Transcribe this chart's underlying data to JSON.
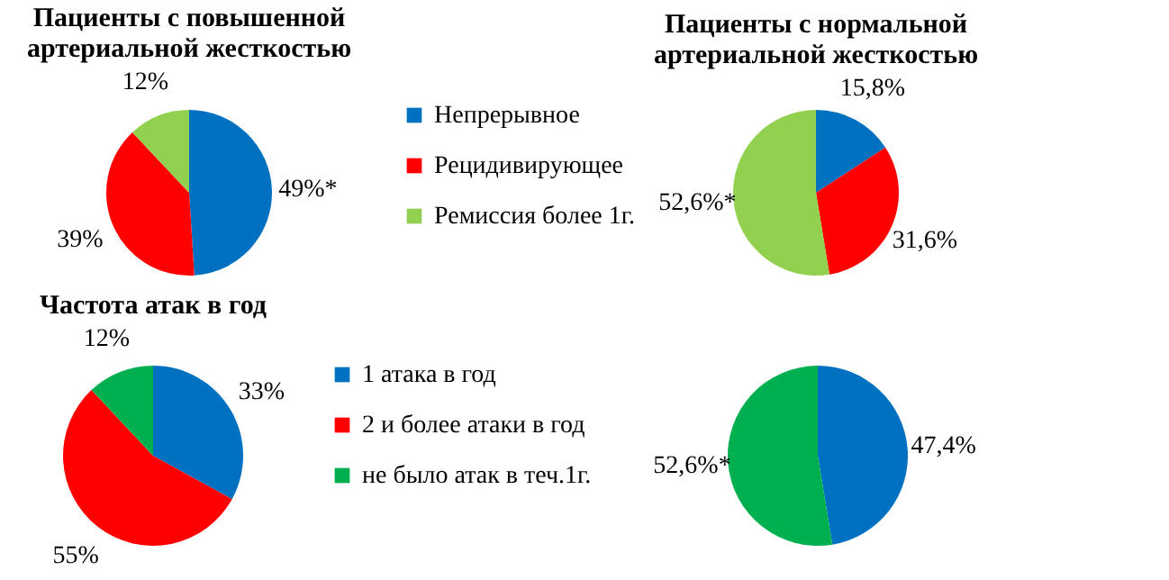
{
  "chart_data": [
    {
      "type": "pie",
      "title": "Пациенты с повышенной артериальной жесткостью",
      "categories": [
        "Непрерывное",
        "Рецидивирующее",
        "Ремиссия более 1г."
      ],
      "values": [
        49,
        39,
        12
      ],
      "value_labels": [
        "49%*",
        "39%",
        "12%"
      ],
      "colors": [
        "#0070c0",
        "#ff0000",
        "#92d050"
      ],
      "legend": "right"
    },
    {
      "type": "pie",
      "title": "Пациенты с нормальной артериальной жесткостью",
      "categories": [
        null,
        null,
        null
      ],
      "values": [
        15.8,
        31.6,
        52.6
      ],
      "value_labels": [
        "15,8%",
        "31,6%",
        "52,6%*"
      ],
      "colors": [
        "#0070c0",
        "#ff0000",
        "#92d050"
      ]
    },
    {
      "type": "pie",
      "title": "Частота атак в год",
      "categories": [
        "1 атака в год",
        "2 и более атаки в год",
        "не было атак в теч.1г."
      ],
      "values": [
        33,
        55,
        12
      ],
      "value_labels": [
        "33%",
        "55%",
        "12%"
      ],
      "colors": [
        "#0070c0",
        "#ff0000",
        "#00b050"
      ],
      "legend": "right"
    },
    {
      "type": "pie",
      "categories": [
        null,
        null
      ],
      "values": [
        47.4,
        52.6
      ],
      "value_labels": [
        "47,4%",
        "52,6%*"
      ],
      "colors": [
        "#0070c0",
        "#00b050"
      ]
    }
  ]
}
